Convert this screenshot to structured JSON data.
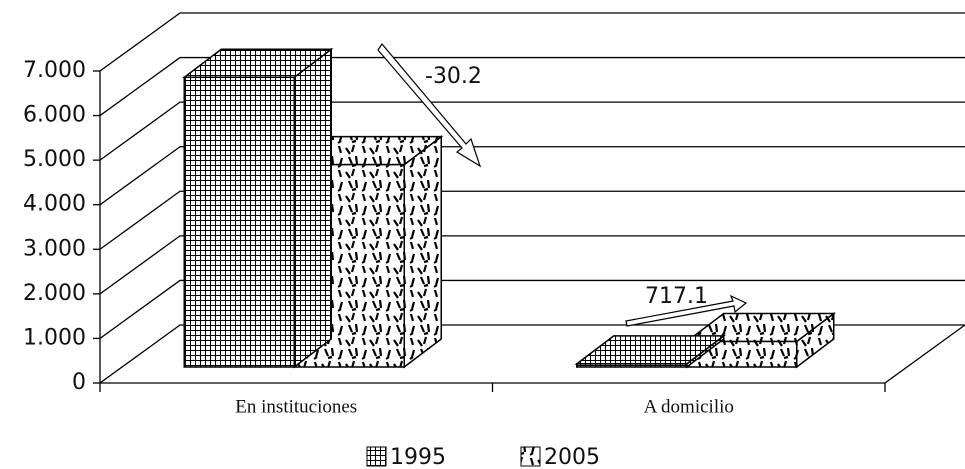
{
  "chart_data": {
    "type": "bar3d",
    "categories": [
      "En instituciones",
      "A domicilio"
    ],
    "series": [
      {
        "name": "1995",
        "pattern": "grid",
        "values": [
          6500,
          70
        ]
      },
      {
        "name": "2005",
        "pattern": "dashes",
        "values": [
          4540,
          572
        ]
      }
    ],
    "ylim": [
      0,
      7000
    ],
    "yticks": [
      0,
      {
        "value": 1000,
        "label": "1.000"
      },
      {
        "value": 2000,
        "label": "2.000"
      },
      {
        "value": 3000,
        "label": "3.000"
      },
      {
        "value": 4000,
        "label": "4.000"
      },
      {
        "value": 5000,
        "label": "5.000"
      },
      {
        "value": 6000,
        "label": "6.000"
      },
      {
        "value": 7000,
        "label": "7.000"
      }
    ],
    "annotations": [
      "-30.2",
      "717.1"
    ],
    "grid": true
  }
}
